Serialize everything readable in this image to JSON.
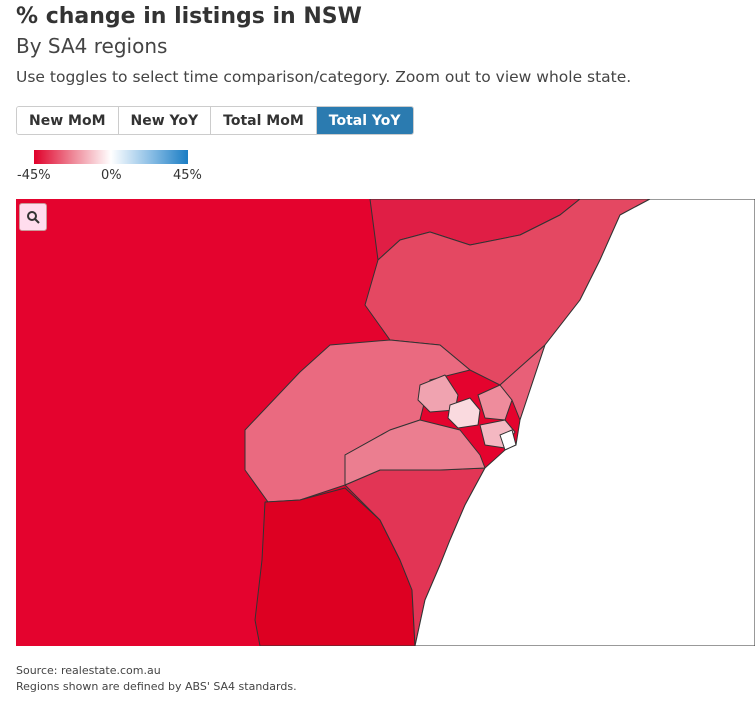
{
  "header": {
    "title": "% change in listings in NSW",
    "subtitle": "By SA4 regions",
    "instructions": "Use toggles to select time comparison/category. Zoom out to view whole state."
  },
  "toggles": [
    {
      "label": "New MoM",
      "active": false
    },
    {
      "label": "New YoY",
      "active": false
    },
    {
      "label": "Total MoM",
      "active": false
    },
    {
      "label": "Total YoY",
      "active": true
    }
  ],
  "legend": {
    "labels": [
      "-45%",
      "0%",
      "45%"
    ]
  },
  "footer": {
    "source": "Source: realestate.com.au",
    "note": "Regions shown are defined by ABS' SA4 standards."
  }
}
